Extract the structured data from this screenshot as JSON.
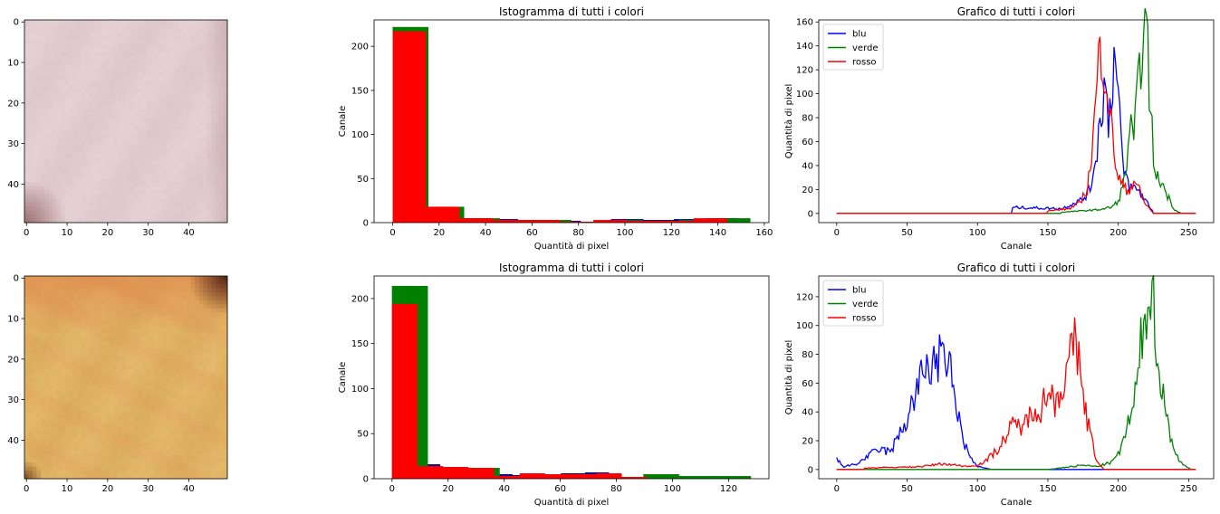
{
  "chart_data": [
    {
      "type": "image",
      "description_colors": {
        "base": "#dcc4ca",
        "light": "#e6d3d8",
        "dark_corner": "#a07676"
      },
      "xticks": [
        0,
        10,
        20,
        30,
        40
      ],
      "yticks": [
        0,
        10,
        20,
        30,
        40
      ],
      "xlim": [
        -0.5,
        49.5
      ],
      "ylim": [
        49.5,
        -0.5
      ]
    },
    {
      "type": "bar",
      "title": "Istogramma di tutti i colori",
      "xlabel": "Quantità di pixel",
      "ylabel": "Canale",
      "xlim": [
        -8,
        162
      ],
      "ylim": [
        0,
        230
      ],
      "xticks": [
        0,
        20,
        40,
        60,
        80,
        100,
        120,
        140,
        160
      ],
      "yticks": [
        0,
        50,
        100,
        150,
        200
      ],
      "series": [
        {
          "name": "blu",
          "color": "#00008b",
          "bins": [
            [
              0,
              13,
              220
            ],
            [
              13,
              27,
              18
            ],
            [
              27,
              40,
              5
            ],
            [
              40,
              54,
              4
            ],
            [
              54,
              67,
              3
            ],
            [
              67,
              81,
              2
            ],
            [
              81,
              94,
              1
            ],
            [
              94,
              108,
              4
            ],
            [
              108,
              121,
              3
            ],
            [
              121,
              135,
              4
            ],
            [
              135,
              148,
              5
            ]
          ]
        },
        {
          "name": "verde",
          "color": "#008000",
          "bins": [
            [
              0,
              15.4,
              222
            ],
            [
              15.4,
              30.8,
              18
            ],
            [
              30.8,
              46.2,
              5
            ],
            [
              46.2,
              61.6,
              3
            ],
            [
              61.6,
              77,
              3
            ],
            [
              77,
              92.4,
              1
            ],
            [
              92.4,
              107.8,
              3
            ],
            [
              107.8,
              123.2,
              2
            ],
            [
              123.2,
              138.6,
              3
            ],
            [
              138.6,
              154,
              5
            ]
          ]
        },
        {
          "name": "rosso",
          "color": "#ff0000",
          "bins": [
            [
              0,
              14.4,
              217
            ],
            [
              14.4,
              28.8,
              18
            ],
            [
              28.8,
              43.2,
              5
            ],
            [
              43.2,
              57.6,
              3
            ],
            [
              57.6,
              72,
              3
            ],
            [
              72,
              86.4,
              1
            ],
            [
              86.4,
              100.8,
              3
            ],
            [
              100.8,
              115.2,
              2
            ],
            [
              115.2,
              129.6,
              2
            ],
            [
              129.6,
              144,
              5
            ]
          ]
        }
      ]
    },
    {
      "type": "line",
      "title": "Grafico di tutti i colori",
      "xlabel": "Canale",
      "ylabel": "Quantità di pixel",
      "xlim": [
        -12.75,
        267.75
      ],
      "ylim": [
        -7.7,
        161.7
      ],
      "xticks": [
        0,
        50,
        100,
        150,
        200,
        250
      ],
      "yticks": [
        0,
        20,
        40,
        60,
        80,
        100,
        120,
        140,
        160
      ],
      "legend": "top-left",
      "series": [
        {
          "name": "blu",
          "color": "#0000ff",
          "peaks": [
            [
              125,
              5
            ],
            [
              160,
              4
            ],
            [
              175,
              12
            ],
            [
              180,
              20
            ],
            [
              185,
              55
            ],
            [
              190,
              110
            ],
            [
              193,
              78
            ],
            [
              197,
              130
            ],
            [
              200,
              100
            ],
            [
              203,
              40
            ],
            [
              208,
              22
            ],
            [
              214,
              20
            ],
            [
              220,
              10
            ],
            [
              225,
              1
            ]
          ]
        },
        {
          "name": "verde",
          "color": "#008000",
          "peaks": [
            [
              160,
              1
            ],
            [
              185,
              3
            ],
            [
              195,
              5
            ],
            [
              200,
              10
            ],
            [
              205,
              30
            ],
            [
              208,
              72
            ],
            [
              211,
              60
            ],
            [
              214,
              100
            ],
            [
              217,
              154
            ],
            [
              220,
              145
            ],
            [
              223,
              90
            ],
            [
              226,
              30
            ],
            [
              230,
              28
            ],
            [
              235,
              15
            ],
            [
              240,
              3
            ],
            [
              245,
              0
            ]
          ]
        },
        {
          "name": "rosso",
          "color": "#ff0000",
          "peaks": [
            [
              150,
              2
            ],
            [
              165,
              4
            ],
            [
              172,
              8
            ],
            [
              178,
              20
            ],
            [
              182,
              60
            ],
            [
              185,
              110
            ],
            [
              188,
              143
            ],
            [
              190,
              130
            ],
            [
              193,
              100
            ],
            [
              196,
              60
            ],
            [
              200,
              30
            ],
            [
              206,
              18
            ],
            [
              212,
              28
            ],
            [
              218,
              10
            ],
            [
              225,
              0
            ]
          ]
        }
      ]
    },
    {
      "type": "image",
      "description_colors": {
        "base": "#d9a95a",
        "light": "#e5bb6c",
        "orange": "#e08a4c",
        "dark_corner": "#5a2a18"
      },
      "xticks": [
        0,
        10,
        20,
        30,
        40
      ],
      "yticks": [
        0,
        10,
        20,
        30,
        40
      ],
      "xlim": [
        -0.5,
        49.5
      ],
      "ylim": [
        49.5,
        -0.5
      ]
    },
    {
      "type": "bar",
      "title": "Istogramma di tutti i colori",
      "xlabel": "Quantità di pixel",
      "ylabel": "Canale",
      "xlim": [
        -6.4,
        134.4
      ],
      "ylim": [
        0,
        225
      ],
      "xticks": [
        0,
        20,
        40,
        60,
        80,
        100,
        120
      ],
      "yticks": [
        0,
        50,
        100,
        150,
        200
      ],
      "series": [
        {
          "name": "blu",
          "color": "#00008b",
          "bins": [
            [
              0,
              8.6,
              214
            ],
            [
              8.6,
              17.2,
              16
            ],
            [
              17.2,
              25.8,
              13
            ],
            [
              25.8,
              34.4,
              12
            ],
            [
              34.4,
              43,
              5
            ],
            [
              43,
              51.6,
              4
            ],
            [
              51.6,
              60.2,
              5
            ],
            [
              60.2,
              68.8,
              6
            ],
            [
              68.8,
              77.4,
              7
            ],
            [
              77.4,
              86,
              2
            ]
          ]
        },
        {
          "name": "verde",
          "color": "#008000",
          "bins": [
            [
              0,
              12.8,
              214
            ],
            [
              12.8,
              25.6,
              13
            ],
            [
              25.6,
              38.4,
              12
            ],
            [
              38.4,
              51.2,
              3
            ],
            [
              51.2,
              64,
              5
            ],
            [
              64,
              76.8,
              5
            ],
            [
              76.8,
              89.6,
              1
            ],
            [
              89.6,
              102.4,
              5
            ],
            [
              102.4,
              115.2,
              3
            ],
            [
              115.2,
              128,
              3
            ]
          ]
        },
        {
          "name": "rosso",
          "color": "#ff0000",
          "bins": [
            [
              0,
              9.1,
              194
            ],
            [
              9.1,
              18.2,
              14
            ],
            [
              18.2,
              27.3,
              13
            ],
            [
              27.3,
              36.4,
              12
            ],
            [
              36.4,
              45.5,
              3
            ],
            [
              45.5,
              54.6,
              6
            ],
            [
              54.6,
              63.7,
              5
            ],
            [
              63.7,
              72.8,
              5
            ],
            [
              72.8,
              81.9,
              6
            ],
            [
              81.9,
              91,
              2
            ]
          ]
        }
      ]
    },
    {
      "type": "line",
      "title": "Grafico di tutti i colori",
      "xlabel": "Canale",
      "ylabel": "Quantità di pixel",
      "xlim": [
        -12.75,
        267.75
      ],
      "ylim": [
        -6.4,
        134.4
      ],
      "xticks": [
        0,
        50,
        100,
        150,
        200,
        250
      ],
      "yticks": [
        0,
        20,
        40,
        60,
        80,
        100,
        120
      ],
      "legend": "top-left",
      "series": [
        {
          "name": "blu",
          "color": "#0000ff",
          "peaks": [
            [
              0,
              7
            ],
            [
              5,
              2
            ],
            [
              15,
              4
            ],
            [
              20,
              8
            ],
            [
              30,
              14
            ],
            [
              38,
              12
            ],
            [
              45,
              25
            ],
            [
              50,
              35
            ],
            [
              55,
              50
            ],
            [
              60,
              62
            ],
            [
              65,
              75
            ],
            [
              68,
              70
            ],
            [
              72,
              78
            ],
            [
              75,
              72
            ],
            [
              78,
              79
            ],
            [
              82,
              60
            ],
            [
              86,
              40
            ],
            [
              90,
              20
            ],
            [
              95,
              8
            ],
            [
              100,
              2
            ],
            [
              110,
              0
            ]
          ]
        },
        {
          "name": "verde",
          "color": "#008000",
          "peaks": [
            [
              150,
              0
            ],
            [
              175,
              3
            ],
            [
              185,
              2
            ],
            [
              195,
              5
            ],
            [
              200,
              10
            ],
            [
              205,
              25
            ],
            [
              210,
              40
            ],
            [
              213,
              55
            ],
            [
              216,
              85
            ],
            [
              219,
              110
            ],
            [
              221,
              123
            ],
            [
              223,
              129
            ],
            [
              225,
              110
            ],
            [
              227,
              95
            ],
            [
              230,
              60
            ],
            [
              234,
              40
            ],
            [
              238,
              20
            ],
            [
              243,
              6
            ],
            [
              248,
              2
            ],
            [
              252,
              0
            ]
          ]
        },
        {
          "name": "rosso",
          "color": "#ff0000",
          "peaks": [
            [
              20,
              1
            ],
            [
              60,
              2
            ],
            [
              75,
              4
            ],
            [
              95,
              2
            ],
            [
              105,
              5
            ],
            [
              115,
              15
            ],
            [
              125,
              30
            ],
            [
              135,
              32
            ],
            [
              140,
              45
            ],
            [
              145,
              42
            ],
            [
              150,
              55
            ],
            [
              155,
              48
            ],
            [
              160,
              58
            ],
            [
              165,
              70
            ],
            [
              168,
              90
            ],
            [
              171,
              78
            ],
            [
              174,
              65
            ],
            [
              177,
              40
            ],
            [
              180,
              25
            ],
            [
              185,
              5
            ],
            [
              190,
              0
            ]
          ]
        }
      ]
    }
  ],
  "legend_labels": [
    "blu",
    "verde",
    "rosso"
  ]
}
